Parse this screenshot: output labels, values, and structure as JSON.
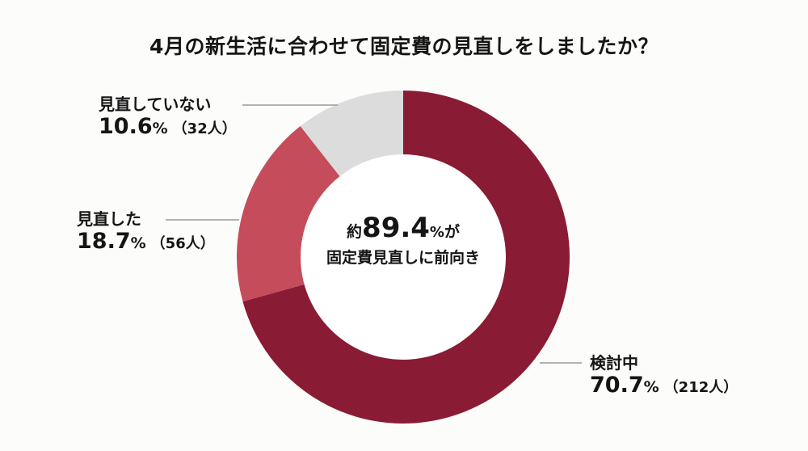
{
  "title": "4月の新生活に合わせて固定費の見直しをしましたか？",
  "center": {
    "prefix": "約",
    "value": "89.4",
    "unit": "%",
    "suffix": "が",
    "line2": "固定費見直しに前向き"
  },
  "labels": {
    "not_reviewed": {
      "name": "見直していない",
      "pct": "10.6",
      "unit": "%",
      "count": "（32人）"
    },
    "reviewed": {
      "name": "見直した",
      "pct": "18.7",
      "unit": "%",
      "count": "（56人）"
    },
    "considering": {
      "name": "検討中",
      "pct": "70.7",
      "unit": "%",
      "count": "（212人）"
    }
  },
  "colors": {
    "considering": "#8a1b35",
    "reviewed": "#c54c5b",
    "not_reviewed": "#dcdcdc",
    "leader": "#9a9a9a",
    "background": "#fcfcfa"
  },
  "chart_data": {
    "type": "pie",
    "subtype": "donut",
    "title": "4月の新生活に合わせて固定費の見直しをしましたか？",
    "categories": [
      "検討中",
      "見直した",
      "見直していない"
    ],
    "values": [
      70.7,
      18.7,
      10.6
    ],
    "counts": [
      212,
      56,
      32
    ],
    "units": "%",
    "start_angle": "12 o'clock, clockwise",
    "center_annotation": "約89.4%が 固定費見直しに前向き",
    "legend": "direct labels with leader lines"
  }
}
